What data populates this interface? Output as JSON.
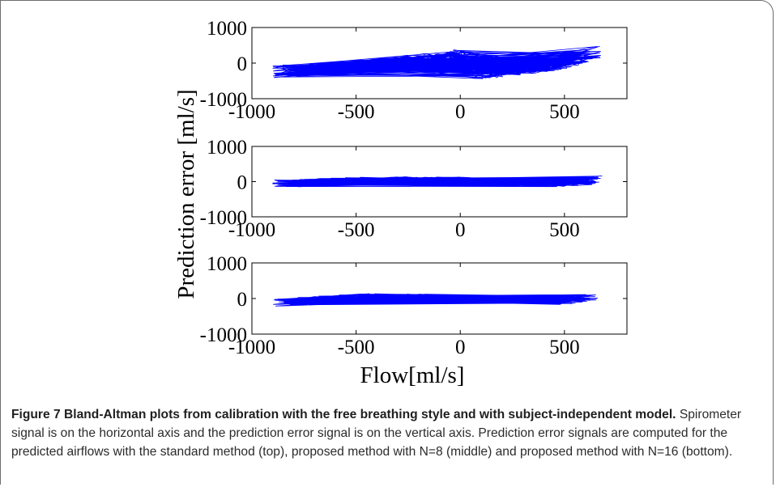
{
  "caption": {
    "label": "Figure 7",
    "title": "Bland-Altman plots from calibration with the free breathing style and with subject-independent model.",
    "body": "Spirometer signal is on the horizontal axis and the prediction error signal is on the vertical axis. Prediction error signals are computed for the predicted airflows with the standard method (top), proposed method with N=8 (middle) and proposed method with N=16 (bottom)."
  },
  "chart_data": [
    {
      "type": "line",
      "xlabel": "Flow[ml/s]",
      "ylabel": "Prediction error [ml/s]",
      "xlim": [
        -1000,
        800
      ],
      "ylim": [
        -1000,
        1000
      ],
      "xticks": [
        "-1000",
        "-500",
        "0",
        "500"
      ],
      "yticks": [
        "1000",
        "0",
        "-1000"
      ],
      "color": "#0000ff",
      "series": [
        {
          "x": [
            -900,
            -600,
            -300,
            -100,
            0,
            50,
            100,
            300,
            500,
            680
          ],
          "y": [
            -230,
            -130,
            20,
            130,
            280,
            -100,
            -300,
            -150,
            0,
            330
          ]
        }
      ]
    },
    {
      "type": "line",
      "xlabel": "Flow[ml/s]",
      "ylabel": "Prediction error [ml/s]",
      "xlim": [
        -1000,
        800
      ],
      "ylim": [
        -1000,
        1000
      ],
      "xticks": [
        "-1000",
        "-500",
        "0",
        "500"
      ],
      "yticks": [
        "1000",
        "0",
        "-1000"
      ],
      "color": "#0000ff",
      "series": [
        {
          "x": [
            -900,
            -600,
            -300,
            0,
            300,
            550,
            680
          ],
          "y": [
            -60,
            0,
            40,
            20,
            -40,
            -30,
            50
          ]
        }
      ]
    },
    {
      "type": "line",
      "xlabel": "Flow[ml/s]",
      "ylabel": "Prediction error [ml/s]",
      "xlim": [
        -1000,
        800
      ],
      "ylim": [
        -1000,
        1000
      ],
      "xticks": [
        "-1000",
        "-500",
        "0",
        "500"
      ],
      "yticks": [
        "1000",
        "0",
        "-1000"
      ],
      "color": "#0000ff",
      "series": [
        {
          "x": [
            -900,
            -700,
            -500,
            -300,
            0,
            300,
            500,
            660
          ],
          "y": [
            -120,
            -50,
            30,
            20,
            0,
            -30,
            -60,
            50
          ]
        }
      ]
    }
  ]
}
